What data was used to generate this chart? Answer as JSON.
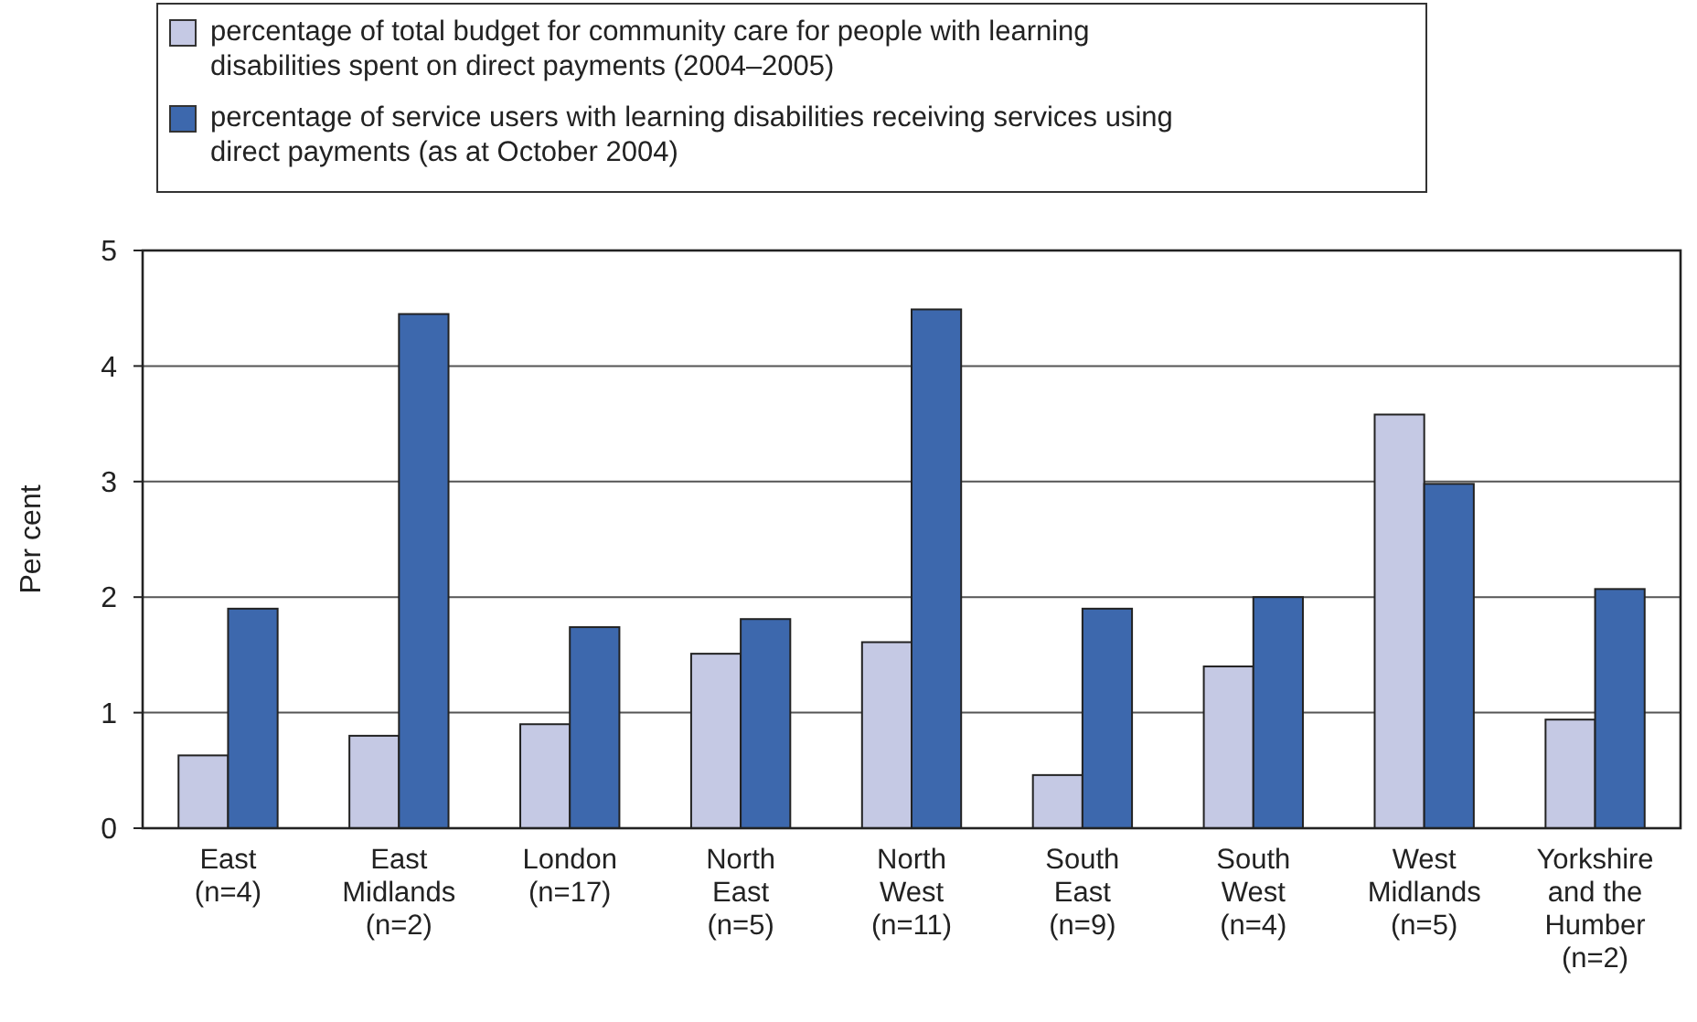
{
  "chart_data": {
    "type": "bar",
    "ylabel": "Per cent",
    "categories": [
      "East (n=4)",
      "East Midlands (n=2)",
      "London (n=17)",
      "North East (n=5)",
      "North West (n=11)",
      "South East (n=9)",
      "South West (n=4)",
      "West Midlands (n=5)",
      "Yorkshire and the Humber (n=2)"
    ],
    "series": [
      {
        "name": "percentage of total budget for community care for people with learning disabilities spent on direct payments (2004–2005)",
        "color": "#c5c9e4",
        "values": [
          0.63,
          0.8,
          0.9,
          1.51,
          1.61,
          0.46,
          1.4,
          3.58,
          0.94
        ]
      },
      {
        "name": "percentage of service users with learning disabilities receiving services using direct payments (as at October 2004)",
        "color": "#3d68ad",
        "values": [
          1.9,
          4.45,
          1.74,
          1.81,
          4.49,
          1.9,
          2.0,
          2.98,
          2.07
        ]
      }
    ],
    "ylim": [
      0,
      5
    ],
    "yticks": [
      0,
      1,
      2,
      3,
      4,
      5
    ],
    "grid": "y",
    "legend": "top"
  }
}
